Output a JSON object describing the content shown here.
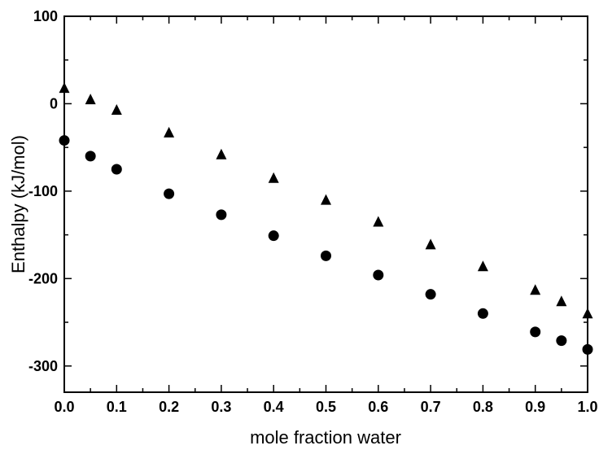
{
  "chart_data": {
    "type": "scatter",
    "title": "",
    "xlabel": "mole fraction water",
    "ylabel": "Enthalpy (kJ/mol)",
    "xlim": [
      0.0,
      1.0
    ],
    "ylim": [
      -330,
      100
    ],
    "x_ticks": [
      0.0,
      0.1,
      0.2,
      0.3,
      0.4,
      0.5,
      0.6,
      0.7,
      0.8,
      0.9,
      1.0
    ],
    "x_tick_labels": [
      "0.0",
      "0.1",
      "0.2",
      "0.3",
      "0.4",
      "0.5",
      "0.6",
      "0.7",
      "0.8",
      "0.9",
      "1.0"
    ],
    "y_ticks": [
      100,
      0,
      -100,
      -200,
      -300
    ],
    "y_tick_labels": [
      "100",
      "0",
      "-100",
      "-200",
      "-300"
    ],
    "grid": false,
    "legend": false,
    "series": [
      {
        "marker": "triangle",
        "color": "#000000",
        "x": [
          0.0,
          0.05,
          0.1,
          0.2,
          0.3,
          0.4,
          0.5,
          0.6,
          0.7,
          0.8,
          0.9,
          0.95,
          1.0
        ],
        "y": [
          18,
          5,
          -7,
          -33,
          -58,
          -85,
          -110,
          -135,
          -161,
          -186,
          -213,
          -226,
          -240
        ]
      },
      {
        "marker": "circle",
        "color": "#000000",
        "x": [
          0.0,
          0.05,
          0.1,
          0.2,
          0.3,
          0.4,
          0.5,
          0.6,
          0.7,
          0.8,
          0.9,
          0.95,
          1.0
        ],
        "y": [
          -42,
          -60,
          -75,
          -103,
          -127,
          -151,
          -174,
          -196,
          -218,
          -240,
          -261,
          -271,
          -281
        ]
      }
    ]
  }
}
